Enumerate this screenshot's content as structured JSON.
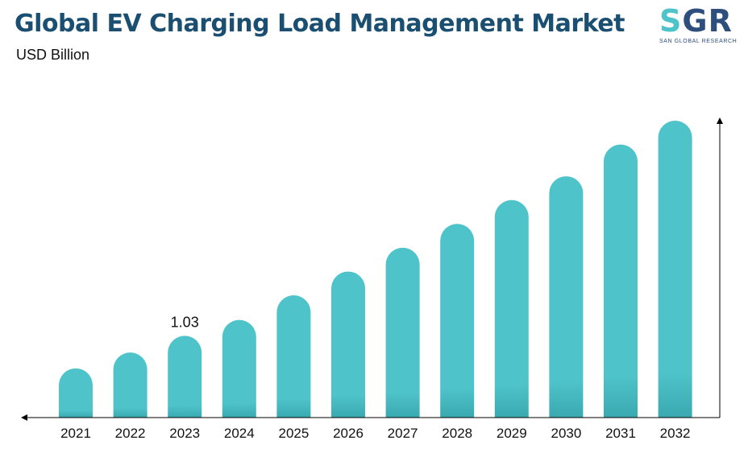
{
  "header": {
    "title": "Global EV Charging Load Management Market",
    "subtitle": "USD Billion"
  },
  "logo": {
    "mark_part1": "S",
    "mark_part2": "GR",
    "text": "SAN GLOBAL RESEARCH"
  },
  "colors": {
    "bar_top": "#4ec3c9",
    "bar_bottom": "#3aa9b0",
    "axis": "#000000",
    "title": "#1b4f72"
  },
  "chart_data": {
    "type": "bar",
    "title": "Global EV Charging Load Management Market",
    "subtitle": "USD Billion",
    "categories": [
      "2021",
      "2022",
      "2023",
      "2024",
      "2025",
      "2026",
      "2027",
      "2028",
      "2029",
      "2030",
      "2031",
      "2032"
    ],
    "values": [
      0.62,
      0.82,
      1.03,
      1.23,
      1.54,
      1.84,
      2.14,
      2.44,
      2.74,
      3.04,
      3.44,
      3.74
    ],
    "data_labels": [
      {
        "category": "2023",
        "text": "1.03"
      }
    ],
    "xlabel": "",
    "ylabel": "",
    "ylim": [
      0,
      3.74
    ],
    "grid": false,
    "legend": "none"
  }
}
